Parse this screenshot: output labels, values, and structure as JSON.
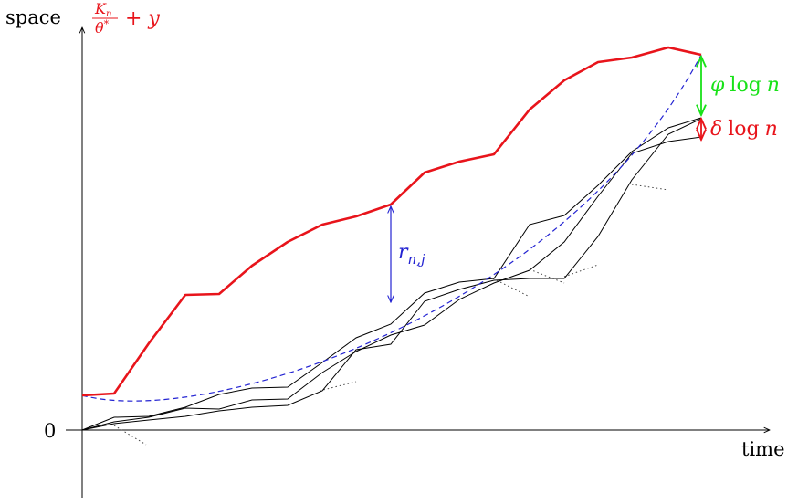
{
  "axes": {
    "y_label": "space",
    "x_label": "time",
    "origin_label": "0"
  },
  "labels": {
    "top_curve": {
      "num_base": "K",
      "num_sub": "n",
      "den_base": "θ",
      "den_sup": "*",
      "suffix": "+ y"
    },
    "gap_blue": {
      "base": "r",
      "sub": "n,j"
    },
    "gap_green": {
      "greek": "φ",
      "op": "log",
      "var": "n"
    },
    "gap_red": {
      "greek": "δ",
      "op": "log",
      "var": "n"
    }
  },
  "colors": {
    "top_curve": "#e8141b",
    "gap_blue": "#2323d2",
    "gap_green": "#19e219",
    "gap_red": "#e8141b",
    "paths": "#000000",
    "axes": "#000000"
  }
}
